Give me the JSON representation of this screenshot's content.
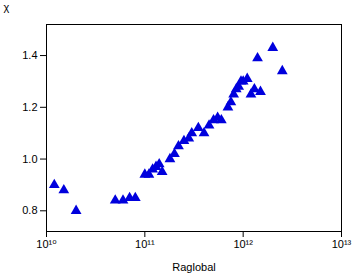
{
  "chart_data": {
    "type": "scatter",
    "x": [
      12000000000.0,
      15000000000.0,
      20000000000.0,
      50000000000.0,
      60000000000.0,
      70000000000.0,
      80000000000.0,
      100000000000.0,
      110000000000.0,
      120000000000.0,
      130000000000.0,
      140000000000.0,
      150000000000.0,
      180000000000.0,
      200000000000.0,
      220000000000.0,
      250000000000.0,
      280000000000.0,
      300000000000.0,
      350000000000.0,
      400000000000.0,
      450000000000.0,
      500000000000.0,
      550000000000.0,
      600000000000.0,
      700000000000.0,
      750000000000.0,
      800000000000.0,
      850000000000.0,
      900000000000.0,
      950000000000.0,
      1000000000000.0,
      1100000000000.0,
      1200000000000.0,
      1300000000000.0,
      1400000000000.0,
      1500000000000.0,
      2000000000000.0,
      2500000000000.0
    ],
    "values": [
      0.9,
      0.88,
      0.8,
      0.84,
      0.84,
      0.85,
      0.85,
      0.94,
      0.94,
      0.96,
      0.97,
      0.98,
      0.95,
      1.0,
      1.02,
      1.05,
      1.07,
      1.08,
      1.1,
      1.12,
      1.1,
      1.13,
      1.15,
      1.16,
      1.15,
      1.2,
      1.22,
      1.25,
      1.27,
      1.28,
      1.3,
      1.3,
      1.31,
      1.25,
      1.27,
      1.39,
      1.26,
      1.43,
      1.34
    ],
    "color": "#0000dd",
    "marker": "triangle",
    "log": "x",
    "xlim": [
      10000000000.0,
      10000000000000.0
    ],
    "xticks": [
      {
        "value": 10000000000.0,
        "label": "10¹⁰"
      },
      {
        "value": 100000000000.0,
        "label": "10¹¹"
      },
      {
        "value": 1000000000000.0,
        "label": "10¹²"
      },
      {
        "value": 10000000000000.0,
        "label": "10¹³"
      }
    ],
    "ylim": [
      0.72,
      1.52
    ],
    "yticks": [
      0.8,
      {
        "value": 1.0,
        "label": "1.0"
      },
      1.2,
      1.4
    ],
    "xlabel": "Raglobal",
    "ylabel": "χ"
  }
}
